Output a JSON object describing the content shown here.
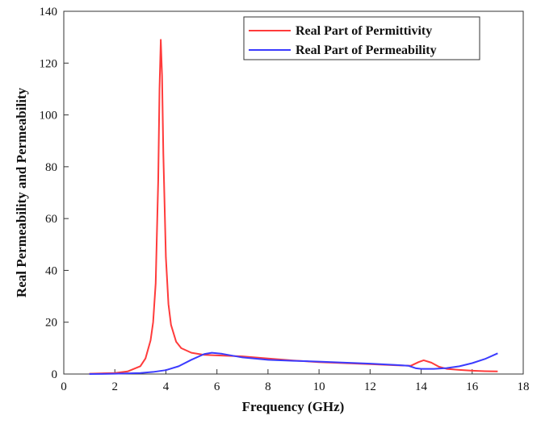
{
  "chart_data": {
    "type": "line",
    "title": "",
    "xlabel": "Frequency (GHz)",
    "ylabel": "Real Permeability and Permeability",
    "xlim": [
      0,
      18
    ],
    "ylim": [
      0,
      140
    ],
    "xticks": [
      0,
      2,
      4,
      6,
      8,
      10,
      12,
      14,
      16,
      18
    ],
    "yticks": [
      0,
      20,
      40,
      60,
      80,
      100,
      120,
      140
    ],
    "grid": false,
    "legend_position": "top-right",
    "series": [
      {
        "name": "Real Part of Permittivity",
        "color": "#ff3b3b",
        "x": [
          1.0,
          2.0,
          2.5,
          3.0,
          3.2,
          3.4,
          3.5,
          3.6,
          3.7,
          3.75,
          3.8,
          3.85,
          3.9,
          4.0,
          4.1,
          4.2,
          4.4,
          4.6,
          5.0,
          5.5,
          6.0,
          7.0,
          8.0,
          9.0,
          10.0,
          11.0,
          12.0,
          13.0,
          13.6,
          13.9,
          14.1,
          14.4,
          14.7,
          15.0,
          15.5,
          16.0,
          16.5,
          17.0
        ],
        "y": [
          0.1,
          0.4,
          1.0,
          3.0,
          6.0,
          13.0,
          20.0,
          35.0,
          75.0,
          110.0,
          129.0,
          115.0,
          85.0,
          45.0,
          27.0,
          19.0,
          12.5,
          10.0,
          8.2,
          7.4,
          7.2,
          6.8,
          6.0,
          5.2,
          4.6,
          4.2,
          3.8,
          3.4,
          3.2,
          4.6,
          5.3,
          4.4,
          2.8,
          2.0,
          1.6,
          1.3,
          1.1,
          1.0
        ]
      },
      {
        "name": "Real Part of Permeability",
        "color": "#3b3bff",
        "x": [
          1.0,
          2.0,
          3.0,
          3.5,
          4.0,
          4.5,
          5.0,
          5.5,
          5.8,
          6.2,
          7.0,
          8.0,
          9.0,
          10.0,
          11.0,
          12.0,
          13.0,
          13.5,
          13.8,
          14.0,
          14.5,
          15.0,
          15.5,
          16.0,
          16.5,
          17.0
        ],
        "y": [
          0.0,
          0.1,
          0.4,
          0.8,
          1.5,
          3.0,
          5.5,
          7.7,
          8.2,
          7.8,
          6.4,
          5.5,
          5.1,
          4.8,
          4.4,
          4.0,
          3.5,
          3.2,
          2.2,
          2.0,
          2.0,
          2.3,
          3.0,
          4.2,
          5.8,
          8.0
        ]
      }
    ]
  }
}
